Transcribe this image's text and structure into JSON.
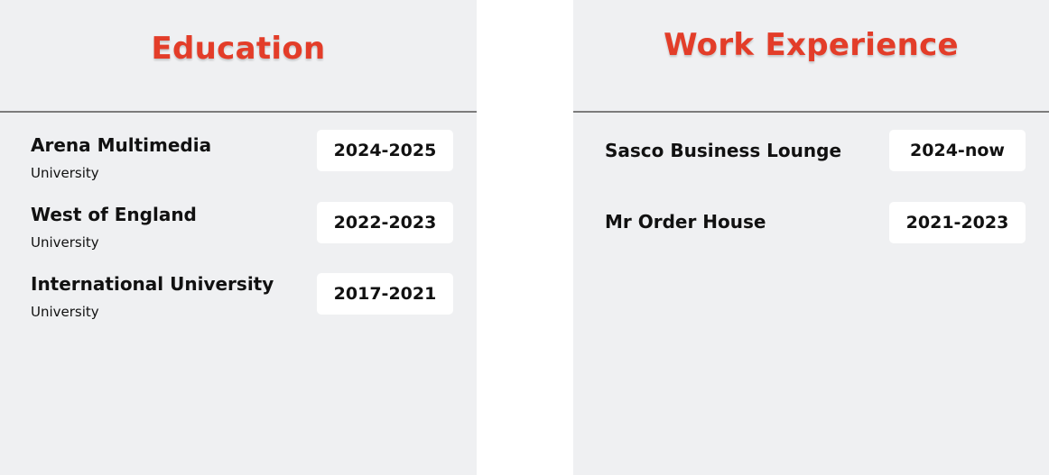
{
  "education": {
    "title": "Education",
    "items": [
      {
        "name": "Arena Multimedia",
        "type": "University",
        "years": "2024-2025"
      },
      {
        "name": "West of England",
        "type": "University",
        "years": "2022-2023"
      },
      {
        "name": "International University",
        "type": "University",
        "years": "2017-2021"
      }
    ]
  },
  "work": {
    "title": "Work Experience",
    "items": [
      {
        "name": "Sasco Business Lounge",
        "years": "2024-now"
      },
      {
        "name": "Mr Order House",
        "years": "2021-2023"
      }
    ]
  },
  "colors": {
    "accent": "#e33d29",
    "panel_bg": "#eff0f2",
    "chip_bg": "#ffffff",
    "divider": "#7c7c7c",
    "text": "#111111"
  }
}
